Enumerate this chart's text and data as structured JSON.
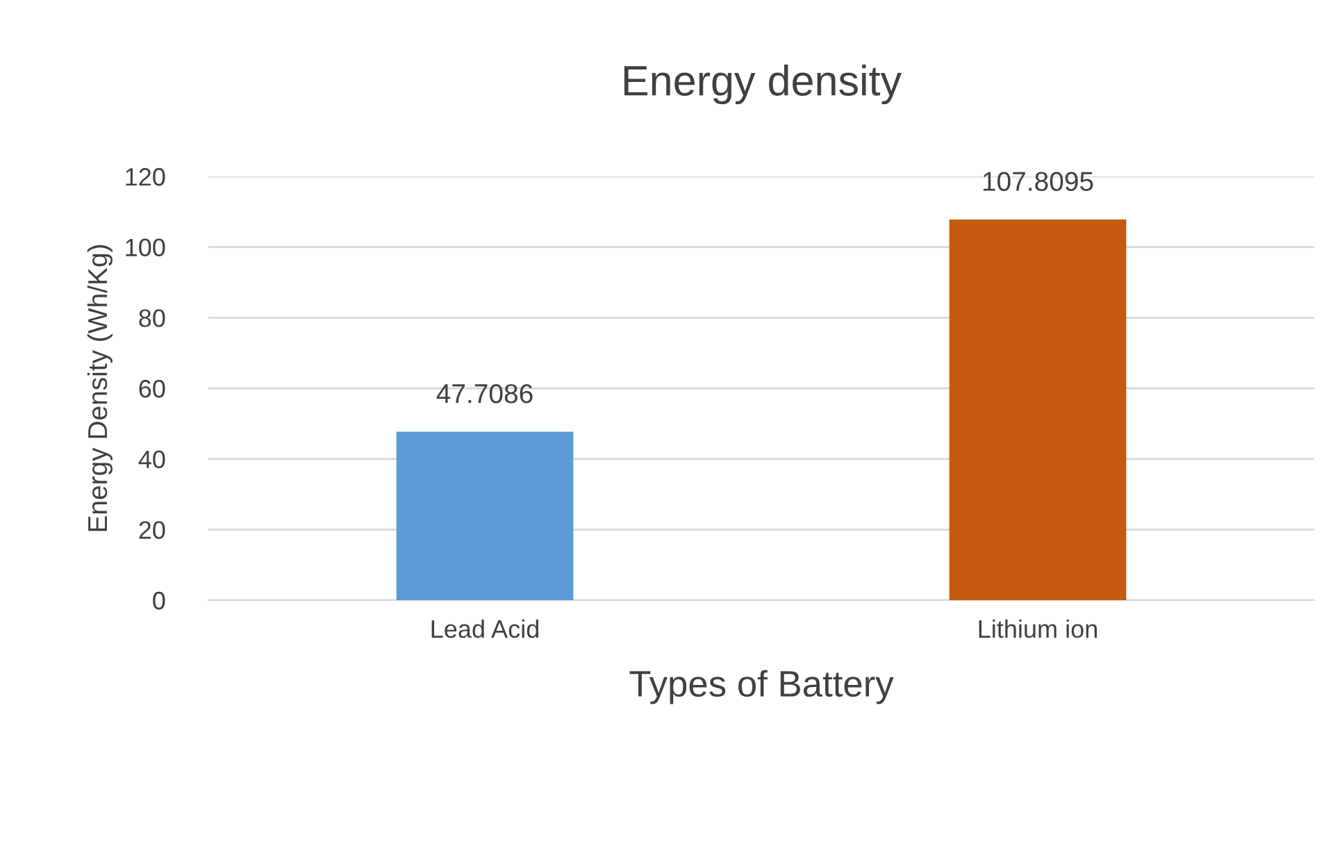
{
  "chart_data": {
    "type": "bar",
    "title": "Energy density",
    "xlabel": "Types of Battery",
    "ylabel": "Energy Density (Wh/Kg)",
    "categories": [
      "Lead Acid",
      "Lithium ion"
    ],
    "values": [
      47.7086,
      107.8095
    ],
    "colors": [
      "#5b9bd5",
      "#c55a11"
    ],
    "ylim": [
      0,
      120
    ],
    "yticks": [
      0,
      20,
      40,
      60,
      80,
      100,
      120
    ],
    "grid": "y",
    "data_labels": true
  }
}
